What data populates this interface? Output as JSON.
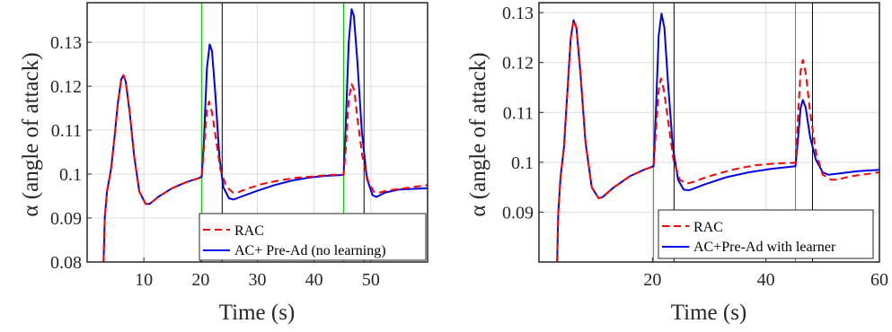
{
  "chart_data": [
    {
      "type": "line",
      "xlabel": "Time (s)",
      "ylabel": "α (angle of attack)",
      "xlim": [
        0,
        60
      ],
      "ylim": [
        0.08,
        0.139
      ],
      "xticks": [
        10,
        20,
        30,
        40,
        50
      ],
      "yticks": [
        0.08,
        0.09,
        0.1,
        0.11,
        0.12,
        0.13
      ],
      "ytick_labels": [
        "0.08",
        "0.09",
        "0.1",
        "0.11",
        "0.12",
        "0.13"
      ],
      "grid": true,
      "legend_position": "bottom-right",
      "vlines": [
        {
          "x": 20.2,
          "color": "#00cc00"
        },
        {
          "x": 23.8,
          "color": "#000000"
        },
        {
          "x": 45.2,
          "color": "#00cc00"
        },
        {
          "x": 48.8,
          "color": "#000000"
        }
      ],
      "series": [
        {
          "name": "RAC",
          "color": "#ff0000",
          "dash": true,
          "points": [
            [
              2.9,
              0.08
            ],
            [
              3.1,
              0.09
            ],
            [
              3.5,
              0.096
            ],
            [
              4.2,
              0.101
            ],
            [
              4.8,
              0.108
            ],
            [
              5.4,
              0.116
            ],
            [
              6,
              0.1215
            ],
            [
              6.4,
              0.1225
            ],
            [
              6.8,
              0.121
            ],
            [
              7.5,
              0.114
            ],
            [
              8.3,
              0.104
            ],
            [
              9.2,
              0.096
            ],
            [
              10.3,
              0.0932
            ],
            [
              11,
              0.0932
            ],
            [
              12.5,
              0.0948
            ],
            [
              15,
              0.0968
            ],
            [
              17.5,
              0.0982
            ],
            [
              19.5,
              0.099
            ],
            [
              20.2,
              0.0994
            ],
            [
              20.6,
              0.106
            ],
            [
              21.1,
              0.1145
            ],
            [
              21.5,
              0.1165
            ],
            [
              22,
              0.114
            ],
            [
              22.7,
              0.108
            ],
            [
              23.5,
              0.101
            ],
            [
              24.5,
              0.0972
            ],
            [
              25.7,
              0.0958
            ],
            [
              26.5,
              0.0958
            ],
            [
              28,
              0.0966
            ],
            [
              31,
              0.0978
            ],
            [
              34,
              0.0986
            ],
            [
              37,
              0.0992
            ],
            [
              40,
              0.0995
            ],
            [
              43,
              0.0998
            ],
            [
              45.2,
              0.0999
            ],
            [
              45.6,
              0.106
            ],
            [
              46.1,
              0.117
            ],
            [
              46.6,
              0.1205
            ],
            [
              47.1,
              0.119
            ],
            [
              47.7,
              0.112
            ],
            [
              48.5,
              0.104
            ],
            [
              49.5,
              0.0985
            ],
            [
              50.5,
              0.096
            ],
            [
              51.5,
              0.0958
            ],
            [
              53,
              0.0963
            ],
            [
              56,
              0.0968
            ],
            [
              60,
              0.0975
            ]
          ]
        },
        {
          "name": "AC+ Pre-Ad (no learning)",
          "color": "#0000ee",
          "dash": false,
          "points": [
            [
              2.9,
              0.08
            ],
            [
              3.1,
              0.09
            ],
            [
              3.5,
              0.096
            ],
            [
              4.2,
              0.101
            ],
            [
              4.8,
              0.108
            ],
            [
              5.4,
              0.116
            ],
            [
              6,
              0.1215
            ],
            [
              6.4,
              0.1225
            ],
            [
              6.8,
              0.121
            ],
            [
              7.5,
              0.114
            ],
            [
              8.3,
              0.104
            ],
            [
              9.2,
              0.096
            ],
            [
              10.3,
              0.0932
            ],
            [
              11,
              0.0932
            ],
            [
              12.5,
              0.0948
            ],
            [
              15,
              0.0968
            ],
            [
              17.5,
              0.0982
            ],
            [
              19.5,
              0.099
            ],
            [
              20.2,
              0.0994
            ],
            [
              20.6,
              0.108
            ],
            [
              21.1,
              0.124
            ],
            [
              21.6,
              0.1295
            ],
            [
              22,
              0.128
            ],
            [
              22.6,
              0.118
            ],
            [
              23.3,
              0.104
            ],
            [
              24,
              0.097
            ],
            [
              25,
              0.0945
            ],
            [
              25.8,
              0.0942
            ],
            [
              27,
              0.0948
            ],
            [
              30,
              0.0962
            ],
            [
              33,
              0.0975
            ],
            [
              36,
              0.0985
            ],
            [
              39,
              0.0992
            ],
            [
              42,
              0.0996
            ],
            [
              45.2,
              0.0998
            ],
            [
              45.6,
              0.112
            ],
            [
              46.1,
              0.13
            ],
            [
              46.6,
              0.1375
            ],
            [
              47,
              0.136
            ],
            [
              47.6,
              0.126
            ],
            [
              48.4,
              0.11
            ],
            [
              49.3,
              0.099
            ],
            [
              50.3,
              0.0952
            ],
            [
              51,
              0.0948
            ],
            [
              52.5,
              0.0958
            ],
            [
              55,
              0.0965
            ],
            [
              60,
              0.0968
            ]
          ]
        }
      ]
    },
    {
      "type": "line",
      "xlabel": "Time (s)",
      "ylabel": "α (angle of attack)",
      "xlim": [
        0,
        60
      ],
      "ylim": [
        0.08,
        0.132
      ],
      "xticks": [
        20,
        40,
        60
      ],
      "yticks": [
        0.09,
        0.1,
        0.11,
        0.12,
        0.13
      ],
      "ytick_labels": [
        "0.09",
        "0.1",
        "0.11",
        "0.12",
        "0.13"
      ],
      "grid": true,
      "legend_position": "bottom-right",
      "vlines": [
        {
          "x": 20.2,
          "color": "#00cc00"
        },
        {
          "x": 23.8,
          "color": "#000000"
        },
        {
          "x": 45.2,
          "color": "#00cc00"
        },
        {
          "x": 48.2,
          "color": "#000000"
        }
      ],
      "series": [
        {
          "name": "RAC",
          "color": "#ff0000",
          "dash": true,
          "points": [
            [
              3.2,
              0.08
            ],
            [
              3.4,
              0.09
            ],
            [
              3.8,
              0.097
            ],
            [
              4.4,
              0.103
            ],
            [
              5,
              0.114
            ],
            [
              5.6,
              0.125
            ],
            [
              6.1,
              0.1285
            ],
            [
              6.6,
              0.127
            ],
            [
              7.3,
              0.118
            ],
            [
              8.2,
              0.104
            ],
            [
              9.3,
              0.095
            ],
            [
              10.5,
              0.0928
            ],
            [
              11.2,
              0.093
            ],
            [
              13,
              0.0948
            ],
            [
              16,
              0.0972
            ],
            [
              18.5,
              0.0985
            ],
            [
              20.2,
              0.0992
            ],
            [
              20.6,
              0.106
            ],
            [
              21.1,
              0.1145
            ],
            [
              21.5,
              0.1168
            ],
            [
              22,
              0.1145
            ],
            [
              22.8,
              0.108
            ],
            [
              23.7,
              0.1005
            ],
            [
              24.8,
              0.0965
            ],
            [
              26,
              0.0957
            ],
            [
              27,
              0.096
            ],
            [
              30,
              0.0972
            ],
            [
              34,
              0.0985
            ],
            [
              38,
              0.0994
            ],
            [
              42,
              0.0998
            ],
            [
              45.2,
              0.0999
            ],
            [
              45.6,
              0.108
            ],
            [
              46.1,
              0.1182
            ],
            [
              46.5,
              0.1205
            ],
            [
              47,
              0.118
            ],
            [
              47.8,
              0.11
            ],
            [
              48.8,
              0.102
            ],
            [
              50,
              0.0975
            ],
            [
              51.5,
              0.0965
            ],
            [
              52.5,
              0.0965
            ],
            [
              55,
              0.0972
            ],
            [
              60,
              0.098
            ]
          ]
        },
        {
          "name": "AC+Pre-Ad with learner",
          "color": "#0000ee",
          "dash": false,
          "points": [
            [
              3.2,
              0.08
            ],
            [
              3.4,
              0.09
            ],
            [
              3.8,
              0.097
            ],
            [
              4.4,
              0.103
            ],
            [
              5,
              0.114
            ],
            [
              5.6,
              0.125
            ],
            [
              6.1,
              0.1285
            ],
            [
              6.6,
              0.127
            ],
            [
              7.3,
              0.118
            ],
            [
              8.2,
              0.104
            ],
            [
              9.3,
              0.095
            ],
            [
              10.5,
              0.0928
            ],
            [
              11.2,
              0.093
            ],
            [
              13,
              0.0948
            ],
            [
              16,
              0.0972
            ],
            [
              18.5,
              0.0985
            ],
            [
              20.2,
              0.0992
            ],
            [
              20.6,
              0.11
            ],
            [
              21.1,
              0.1255
            ],
            [
              21.6,
              0.1298
            ],
            [
              22.1,
              0.127
            ],
            [
              22.8,
              0.115
            ],
            [
              23.6,
              0.103
            ],
            [
              24.5,
              0.0965
            ],
            [
              25.5,
              0.0945
            ],
            [
              26.5,
              0.0944
            ],
            [
              29,
              0.0955
            ],
            [
              33,
              0.097
            ],
            [
              37,
              0.098
            ],
            [
              41,
              0.0987
            ],
            [
              45.2,
              0.0992
            ],
            [
              45.6,
              0.104
            ],
            [
              46.1,
              0.1108
            ],
            [
              46.5,
              0.1125
            ],
            [
              47,
              0.111
            ],
            [
              47.8,
              0.105
            ],
            [
              48.8,
              0.1005
            ],
            [
              50,
              0.098
            ],
            [
              51,
              0.0975
            ],
            [
              52.5,
              0.0977
            ],
            [
              56,
              0.0982
            ],
            [
              60,
              0.0985
            ]
          ]
        }
      ]
    }
  ]
}
